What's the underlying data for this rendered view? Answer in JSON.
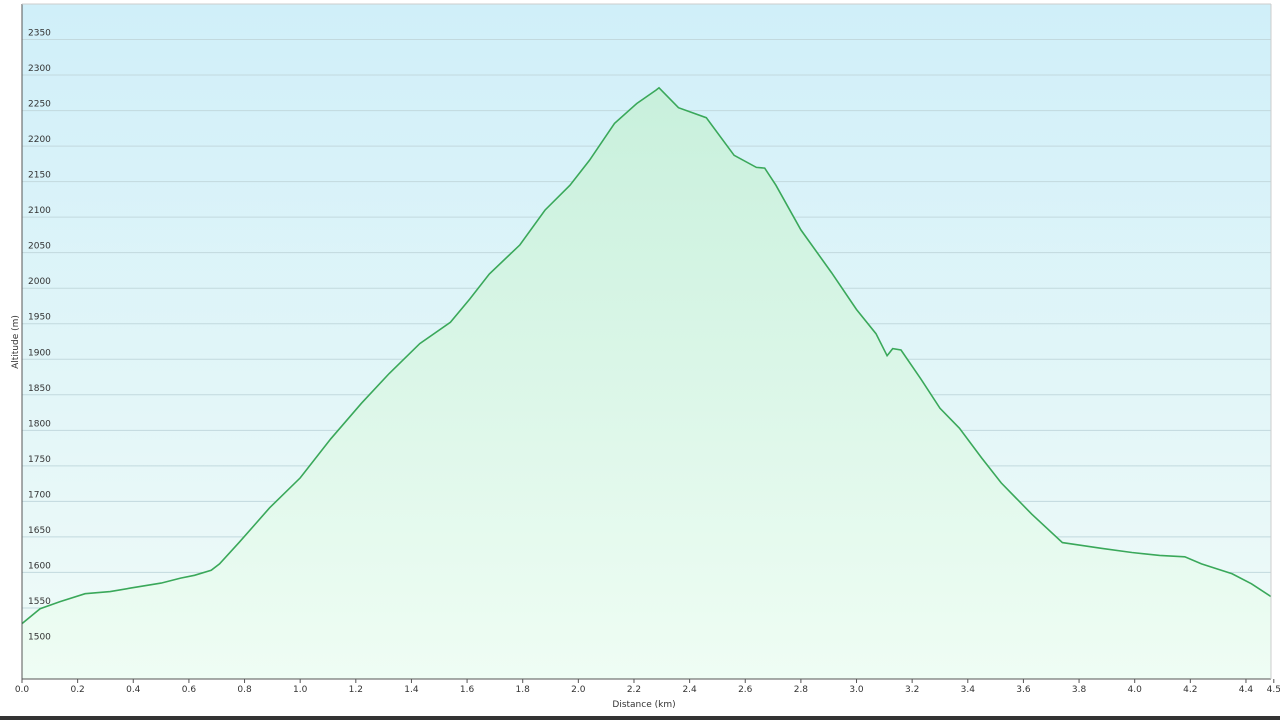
{
  "chart_data": {
    "type": "area",
    "title": "",
    "xlabel": "Distance  (km)",
    "ylabel": "Altitude (m)",
    "xlim": [
      0,
      4.49
    ],
    "ylim": [
      1450,
      2400
    ],
    "grid": {
      "horizontal": true,
      "vertical": false
    },
    "x_ticks": [
      "0.0",
      "0.2",
      "0.4",
      "0.6",
      "0.8",
      "1.0",
      "1.2",
      "1.4",
      "1.6",
      "1.8",
      "2.0",
      "2.2",
      "2.4",
      "2.6",
      "2.8",
      "3.0",
      "3.2",
      "3.4",
      "3.6",
      "3.8",
      "4.0",
      "4.2",
      "4.4",
      "4.5"
    ],
    "y_ticks": [
      "1500",
      "1550",
      "1600",
      "1650",
      "1700",
      "1750",
      "1800",
      "1850",
      "1900",
      "1950",
      "2000",
      "2050",
      "2100",
      "2150",
      "2200",
      "2250",
      "2300",
      "2350"
    ],
    "colors": {
      "line": "#3aa85a",
      "fill_top": "#c8f0dc",
      "fill_bottom": "#effdf4",
      "bg_top": "#d0eff9",
      "bg_bottom": "#f0fbf8",
      "grid": "#c2d9de"
    },
    "series": [
      {
        "x": [
          0,
          0.065,
          0.137,
          0.227,
          0.317,
          0.39,
          0.5,
          0.57,
          0.62,
          0.68,
          0.71,
          0.78,
          0.89,
          1.0,
          1.11,
          1.22,
          1.32,
          1.43,
          1.54,
          1.61,
          1.68,
          1.79,
          1.88,
          1.97,
          2.04,
          2.13,
          2.21,
          2.28,
          2.29,
          2.36,
          2.46,
          2.56,
          2.64,
          2.67,
          2.71,
          2.8,
          2.91,
          3.0,
          3.07,
          3.11,
          3.13,
          3.16,
          3.23,
          3.3,
          3.37,
          3.45,
          3.52,
          3.63,
          3.74,
          3.81,
          3.88,
          3.99,
          4.09,
          4.18,
          4.24,
          4.35,
          4.42,
          4.49
        ],
        "y": [
          1528,
          1549,
          1559,
          1570,
          1573,
          1578,
          1585,
          1592,
          1596,
          1603,
          1612,
          1642,
          1691,
          1733,
          1788,
          1838,
          1880,
          1922,
          1952,
          1985,
          2020,
          2061,
          2110,
          2145,
          2180,
          2232,
          2260,
          2279,
          2282,
          2254,
          2240,
          2187,
          2170,
          2169,
          2145,
          2082,
          2022,
          1970,
          1936,
          1905,
          1915,
          1913,
          1873,
          1831,
          1803,
          1761,
          1726,
          1682,
          1642,
          1638,
          1634,
          1628,
          1624,
          1622,
          1612,
          1598,
          1584,
          1566
        ]
      }
    ]
  }
}
